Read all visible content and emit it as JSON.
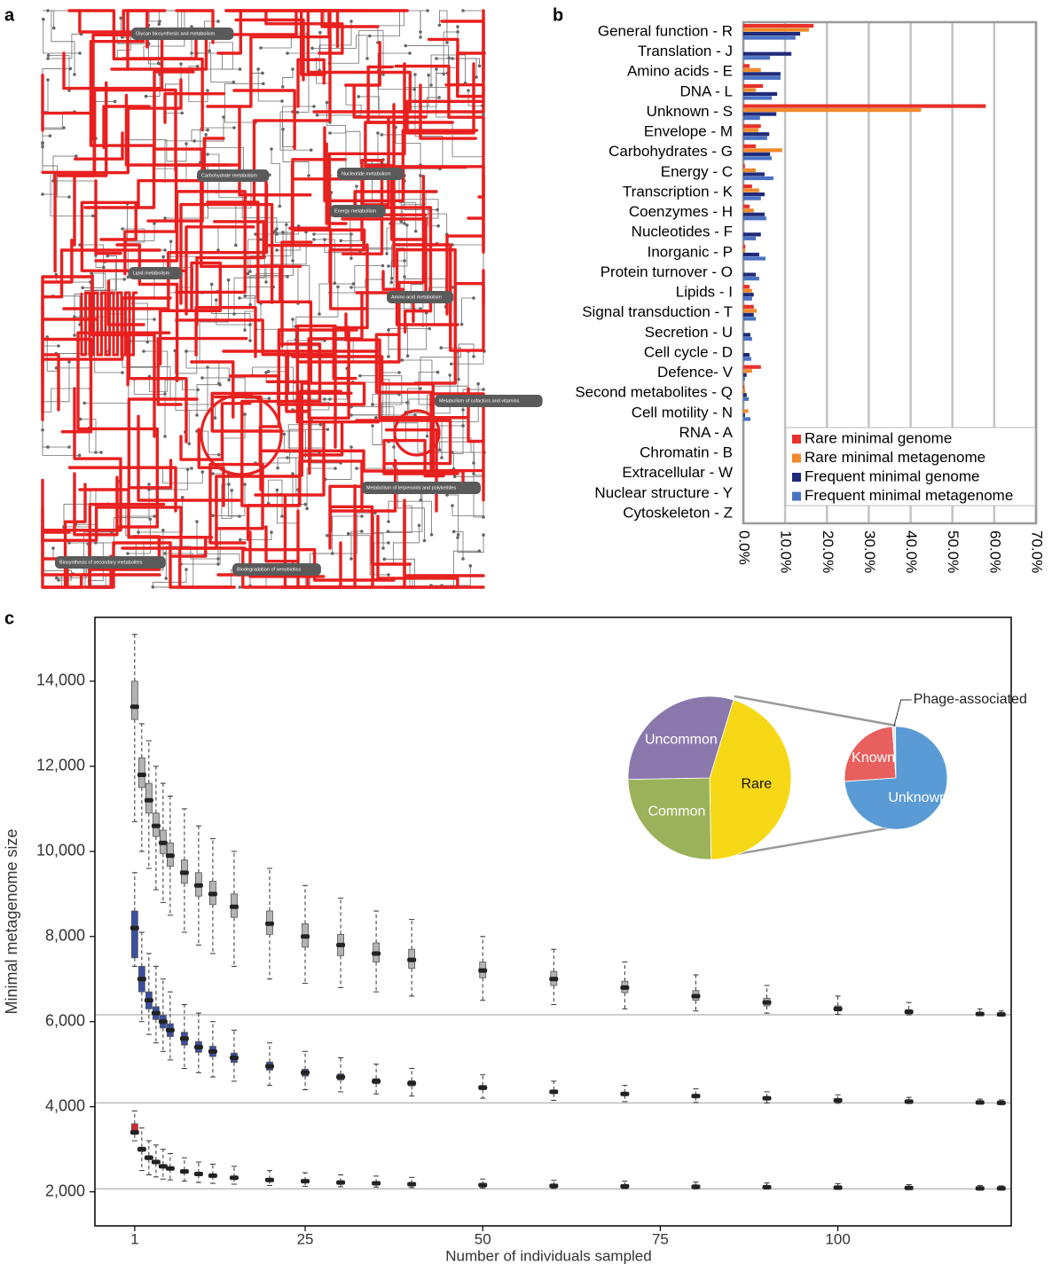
{
  "panels": [
    "a",
    "b",
    "c"
  ],
  "diagram": {
    "labels": [
      "Glycan biosynthesis and metabolism",
      "Carbohydrate metabolism",
      "Nucleotide metabolism",
      "Energy metabolism",
      "Lipid metabolism",
      "Amino acid metabolism",
      "Metabolism of cofactors and vitamins",
      "Metabolism of terpenoids and polyketides",
      "Biosynthesis of secondary metabolites",
      "Biodegradation of xenobiotics"
    ]
  },
  "chart_data": [
    {
      "type": "bar",
      "orientation": "horizontal",
      "categories": [
        "General function - R",
        "Translation - J",
        "Amino acids - E",
        "DNA - L",
        "Unknown - S",
        "Envelope - M",
        "Carbohydrates - G",
        "Energy - C",
        "Transcription - K",
        "Coenzymes - H",
        "Nucleotides - F",
        "Inorganic - P",
        "Protein turnover - O",
        "Lipids - I",
        "Signal transduction - T",
        "Secretion - U",
        "Cell cycle - D",
        "Defence- V",
        "Second metabolites - Q",
        "Cell motility - N",
        "RNA - A",
        "Chromatin - B",
        "Extracellular - W",
        "Nuclear structure - Y",
        "Cytoskeleton - Z"
      ],
      "series": [
        {
          "name": "Rare minimal genome",
          "color": "#e8312a",
          "values": [
            16.8,
            0,
            1.5,
            4.7,
            58,
            4.2,
            3,
            0.4,
            2.1,
            1.5,
            0,
            0.5,
            0,
            1.5,
            2.5,
            0,
            0,
            4.2,
            0.3,
            0,
            0,
            0,
            0,
            0,
            0
          ]
        },
        {
          "name": "Rare minimal metagenome",
          "color": "#f08a2c",
          "values": [
            15.7,
            0,
            4.2,
            3,
            42.5,
            3.6,
            9.3,
            3,
            3.8,
            2.5,
            0,
            0.5,
            0,
            2.1,
            3.2,
            0,
            0,
            2.1,
            0.5,
            1.2,
            0,
            0,
            0,
            0,
            0
          ]
        },
        {
          "name": "Frequent minimal genome",
          "color": "#1f2a7a",
          "values": [
            13.6,
            11.5,
            8.9,
            8.1,
            7.9,
            6.2,
            6.4,
            5.1,
            5.1,
            5.1,
            4.2,
            3.8,
            3,
            2.5,
            2.5,
            1.7,
            1.5,
            0.8,
            0.8,
            0.4,
            0,
            0,
            0,
            0,
            0
          ]
        },
        {
          "name": "Frequent minimal metagenome",
          "color": "#4a72c4",
          "values": [
            12.5,
            6.4,
            8.9,
            6.8,
            4,
            5.7,
            6.8,
            7.2,
            4.2,
            5.5,
            3,
            5.3,
            3.8,
            2.1,
            3,
            2.1,
            1.9,
            0.4,
            1.3,
            1.7,
            0,
            0,
            0,
            0,
            0
          ]
        }
      ],
      "xlim": [
        0,
        70
      ],
      "xticks": [
        {
          "value": 0,
          "label": "0.0%"
        },
        {
          "value": 10,
          "label": "10.0%"
        },
        {
          "value": 20,
          "label": "20.0%"
        },
        {
          "value": 30,
          "label": "30.0%"
        },
        {
          "value": 40,
          "label": "40.0%"
        },
        {
          "value": 50,
          "label": "50.0%"
        },
        {
          "value": 60,
          "label": "60.0%"
        },
        {
          "value": 70,
          "label": "70.0%"
        }
      ],
      "grid": true,
      "legend": "lower right"
    },
    {
      "type": "box",
      "xlabel": "Number of individuals sampled",
      "ylabel": "Minimal metagenome size",
      "x": [
        1,
        2,
        3,
        4,
        5,
        6,
        8,
        10,
        12,
        15,
        20,
        25,
        30,
        35,
        40,
        50,
        60,
        70,
        80,
        90,
        100,
        110,
        120,
        123
      ],
      "series": [
        {
          "color": "#b3b3b3",
          "median": [
            13400,
            11800,
            11200,
            10600,
            10200,
            9900,
            9500,
            9200,
            9000,
            8700,
            8300,
            8000,
            7800,
            7600,
            7450,
            7200,
            7000,
            6800,
            6600,
            6450,
            6300,
            6230,
            6180,
            6170
          ],
          "q1": [
            13100,
            11500,
            10900,
            10350,
            9950,
            9650,
            9250,
            8950,
            8750,
            8450,
            8050,
            7750,
            7550,
            7400,
            7250,
            7030,
            6850,
            6680,
            6500,
            6370,
            6250,
            6200,
            6160,
            6155
          ],
          "q3": [
            14000,
            12200,
            11600,
            10900,
            10500,
            10200,
            9800,
            9500,
            9300,
            9000,
            8600,
            8300,
            8050,
            7850,
            7700,
            7400,
            7180,
            6950,
            6730,
            6550,
            6370,
            6280,
            6210,
            6190
          ],
          "whislo": [
            10700,
            10000,
            9600,
            9100,
            8800,
            8500,
            8100,
            7800,
            7600,
            7300,
            7000,
            6900,
            6800,
            6700,
            6600,
            6500,
            6400,
            6300,
            6250,
            6200,
            6170,
            6160,
            6150,
            6150
          ],
          "whishi": [
            15100,
            13000,
            12600,
            12000,
            11600,
            11300,
            11000,
            10600,
            10300,
            10000,
            9600,
            9200,
            8900,
            8600,
            8400,
            8000,
            7700,
            7400,
            7100,
            6850,
            6600,
            6450,
            6300,
            6250
          ]
        },
        {
          "color": "#3a4fa0",
          "median": [
            8200,
            7000,
            6500,
            6200,
            6000,
            5800,
            5600,
            5400,
            5300,
            5150,
            4950,
            4800,
            4700,
            4600,
            4550,
            4450,
            4350,
            4300,
            4250,
            4200,
            4150,
            4120,
            4100,
            4090
          ],
          "q1": [
            7500,
            6700,
            6300,
            6050,
            5850,
            5650,
            5450,
            5280,
            5180,
            5040,
            4860,
            4720,
            4630,
            4540,
            4490,
            4400,
            4310,
            4270,
            4225,
            4180,
            4135,
            4110,
            4095,
            4085
          ],
          "q3": [
            8600,
            7300,
            6700,
            6350,
            6150,
            5950,
            5750,
            5530,
            5420,
            5260,
            5050,
            4880,
            4770,
            4660,
            4610,
            4500,
            4390,
            4330,
            4275,
            4220,
            4165,
            4130,
            4105,
            4095
          ],
          "whislo": [
            7300,
            6000,
            5700,
            5500,
            5300,
            5100,
            4900,
            4800,
            4700,
            4600,
            4500,
            4400,
            4350,
            4300,
            4250,
            4200,
            4150,
            4120,
            4100,
            4090,
            4080,
            4075,
            4070,
            4070
          ],
          "whishi": [
            9500,
            8100,
            7600,
            7300,
            7000,
            6700,
            6400,
            6200,
            6000,
            5800,
            5500,
            5300,
            5150,
            5000,
            4900,
            4750,
            4600,
            4500,
            4420,
            4350,
            4280,
            4220,
            4180,
            4160
          ]
        },
        {
          "color": "#d42a2a",
          "median": [
            3400,
            3000,
            2800,
            2700,
            2600,
            2550,
            2480,
            2420,
            2380,
            2330,
            2280,
            2250,
            2220,
            2200,
            2180,
            2160,
            2140,
            2130,
            2120,
            2110,
            2100,
            2090,
            2080,
            2080
          ],
          "q1": [
            3350,
            2950,
            2760,
            2670,
            2580,
            2530,
            2460,
            2400,
            2365,
            2320,
            2270,
            2240,
            2210,
            2190,
            2175,
            2155,
            2135,
            2125,
            2115,
            2105,
            2095,
            2088,
            2078,
            2078
          ],
          "q3": [
            3600,
            3050,
            2850,
            2740,
            2640,
            2580,
            2510,
            2450,
            2400,
            2350,
            2300,
            2265,
            2235,
            2215,
            2195,
            2170,
            2150,
            2140,
            2130,
            2118,
            2108,
            2095,
            2085,
            2085
          ],
          "whislo": [
            3200,
            2500,
            2400,
            2350,
            2300,
            2280,
            2250,
            2220,
            2200,
            2180,
            2150,
            2130,
            2120,
            2110,
            2100,
            2090,
            2080,
            2075,
            2070,
            2065,
            2060,
            2060,
            2060,
            2060
          ],
          "whishi": [
            3900,
            3500,
            3200,
            3100,
            3000,
            2900,
            2800,
            2700,
            2650,
            2600,
            2500,
            2450,
            2400,
            2370,
            2340,
            2300,
            2270,
            2250,
            2230,
            2210,
            2190,
            2170,
            2150,
            2140
          ]
        }
      ],
      "reference_lines": [
        6160,
        4090,
        2070
      ],
      "xlim": [
        -4.6,
        124.4
      ],
      "xticks": [
        1,
        25,
        50,
        75,
        100
      ],
      "ylim": [
        1200,
        15500
      ],
      "yticks": [
        {
          "value": 2000,
          "label": "2,000"
        },
        {
          "value": 4000,
          "label": "4,000"
        },
        {
          "value": 6000,
          "label": "6,000"
        },
        {
          "value": 8000,
          "label": "8,000"
        },
        {
          "value": 10000,
          "label": "10,000"
        },
        {
          "value": 12000,
          "label": "12,000"
        },
        {
          "value": 14000,
          "label": "14,000"
        }
      ]
    },
    {
      "type": "pie",
      "categories": [
        "Rare",
        "Common",
        "Uncommon"
      ],
      "values": [
        45,
        25,
        30
      ],
      "colors": [
        "#f7d817",
        "#9bb25a",
        "#8a78ad"
      ]
    },
    {
      "type": "pie",
      "categories": [
        "Known",
        "Phage-associated",
        "Unknown"
      ],
      "values": [
        25,
        1,
        74
      ],
      "colors": [
        "#e8605e",
        "#dfe9f5",
        "#5a9bd5"
      ]
    }
  ]
}
